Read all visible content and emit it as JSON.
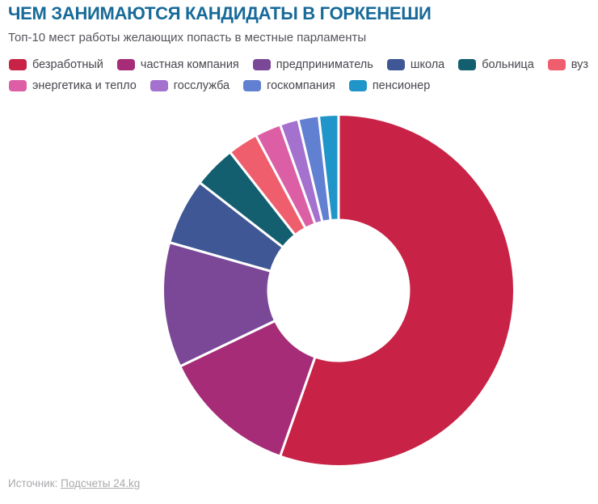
{
  "header": {
    "title": "ЧЕМ ЗАНИМАЮТСЯ КАНДИДАТЫ В ГОРКЕНЕШИ",
    "subtitle": "Топ-10 мест работы желающих попасть в местные парламенты"
  },
  "chart_data": {
    "type": "pie",
    "variant": "donut",
    "title": "ЧЕМ ЗАНИМАЮТСЯ КАНДИДАТЫ В ГОРКЕНЕШИ",
    "subtitle": "Топ-10 мест работы желающих попасть в местные парламенты",
    "legend_position": "top",
    "direction": "clockwise",
    "start_angle_deg": 0,
    "inner_radius_ratio": 0.4,
    "data_labels_shown": false,
    "categories": [
      "безработный",
      "частная компания",
      "предприниматель",
      "школа",
      "больница",
      "вуз",
      "энергетика и тепло",
      "госслужба",
      "госкомпания",
      "пенсионер"
    ],
    "values": [
      55.4,
      12.5,
      11.5,
      6.1,
      3.9,
      2.8,
      2.4,
      1.7,
      1.9,
      1.8
    ],
    "values_note": "percent share estimated from slice arc angles; no numeric labels visible in image",
    "colors": [
      "#c82346",
      "#a62c77",
      "#7b4898",
      "#3f5795",
      "#135f70",
      "#ef5e6d",
      "#dc5fa5",
      "#a471ce",
      "#6280d2",
      "#1f95c9"
    ]
  },
  "footer": {
    "source_prefix": "Источник: ",
    "source_link": "Подсчеты 24.kg"
  },
  "colors": {
    "title_text": "#176a99",
    "subtitle_text": "#55555d",
    "legend_text": "#47474f",
    "source_text": "#a9a9ad",
    "background": "#ffffff",
    "slice_gap_stroke": "#ffffff"
  }
}
